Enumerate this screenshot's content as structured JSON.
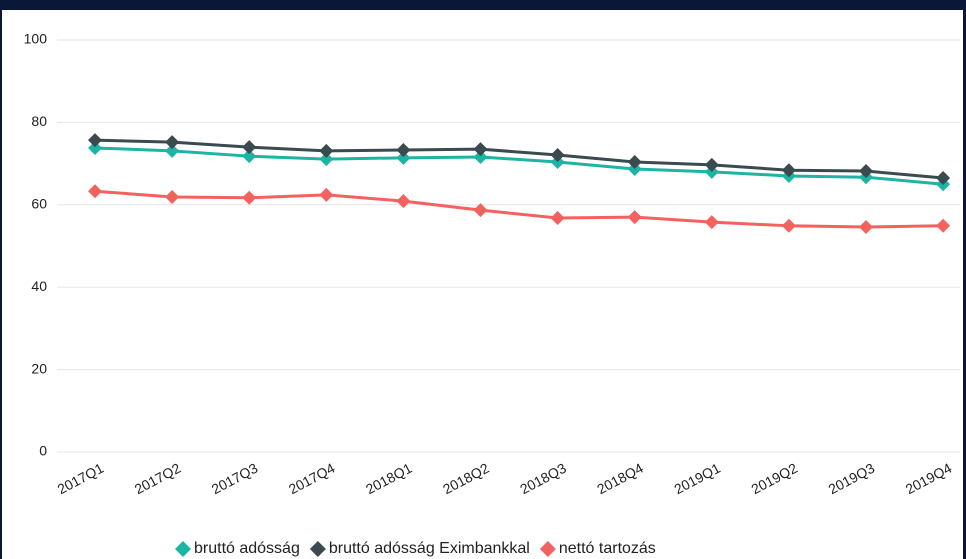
{
  "chart_data": {
    "type": "line",
    "categories": [
      "2017Q1",
      "2017Q2",
      "2017Q3",
      "2017Q4",
      "2018Q1",
      "2018Q2",
      "2018Q3",
      "2018Q4",
      "2019Q1",
      "2019Q2",
      "2019Q3",
      "2019Q4"
    ],
    "series": [
      {
        "name": "bruttó adósság",
        "color": "#1cb5a3",
        "values": [
          73.8,
          73.1,
          71.8,
          71.1,
          71.4,
          71.6,
          70.4,
          68.7,
          68.0,
          67.0,
          66.7,
          65.0
        ]
      },
      {
        "name": "bruttó adósság Eximbankkal",
        "color": "#3a4a4f",
        "values": [
          75.7,
          75.2,
          74.0,
          73.1,
          73.3,
          73.5,
          72.1,
          70.4,
          69.7,
          68.4,
          68.2,
          66.5
        ]
      },
      {
        "name": "nettó tartozás",
        "color": "#f4625f",
        "values": [
          63.3,
          61.9,
          61.7,
          62.4,
          60.9,
          58.7,
          56.8,
          57.0,
          55.8,
          54.9,
          54.6,
          54.9
        ]
      }
    ],
    "ylim": [
      0,
      100
    ],
    "yticks": [
      0,
      20,
      40,
      60,
      80,
      100
    ],
    "grid": true,
    "legend": "bottom"
  }
}
